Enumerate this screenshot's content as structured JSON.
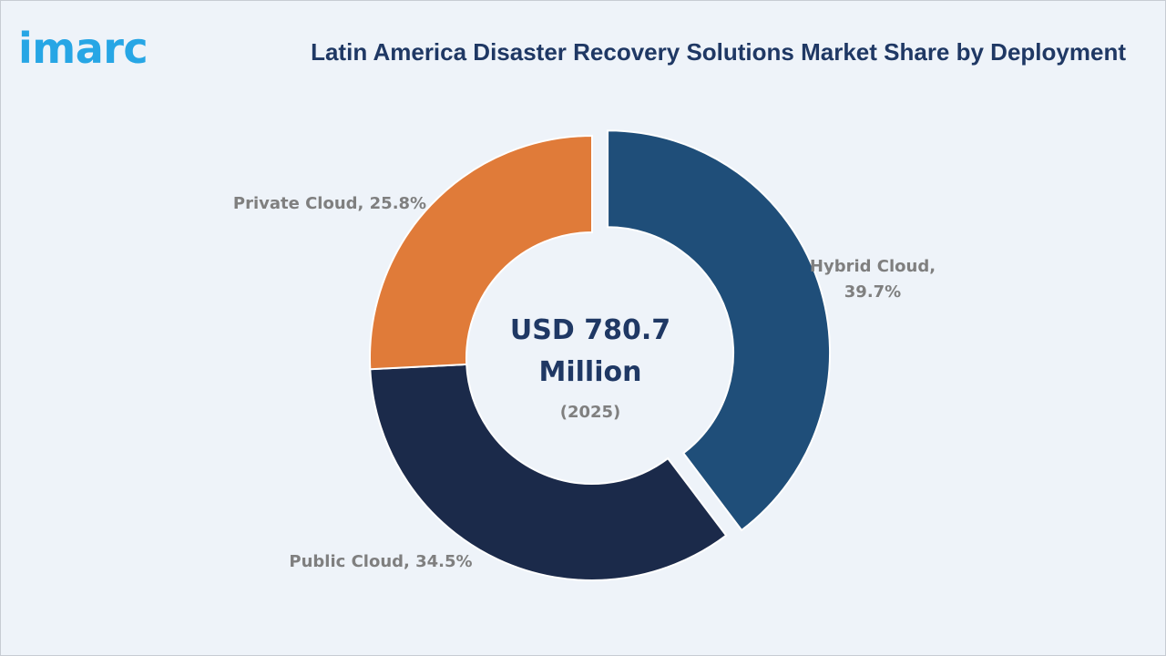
{
  "brand": {
    "logo_text": "imarc",
    "logo_color": "#27a6e5"
  },
  "chart_data": {
    "type": "pie",
    "title": "Latin America Disaster Recovery Solutions Market Share by Deployment",
    "center_text": {
      "value_line1": "USD 780.7",
      "value_line2": "Million",
      "year": "(2025)"
    },
    "slices": [
      {
        "name": "Hybrid Cloud",
        "value": 39.7,
        "label_lines": [
          "Hybrid Cloud,",
          "39.7%"
        ],
        "color": "#1f4e79",
        "exploded": true
      },
      {
        "name": "Public Cloud",
        "value": 34.5,
        "label_lines": [
          "Public Cloud, 34.5%"
        ],
        "color": "#1b2a4a",
        "exploded": false
      },
      {
        "name": "Private Cloud",
        "value": 25.8,
        "label_lines": [
          "Private Cloud, 25.8%"
        ],
        "color": "#e07b39",
        "exploded": false
      }
    ],
    "legend": "none"
  }
}
